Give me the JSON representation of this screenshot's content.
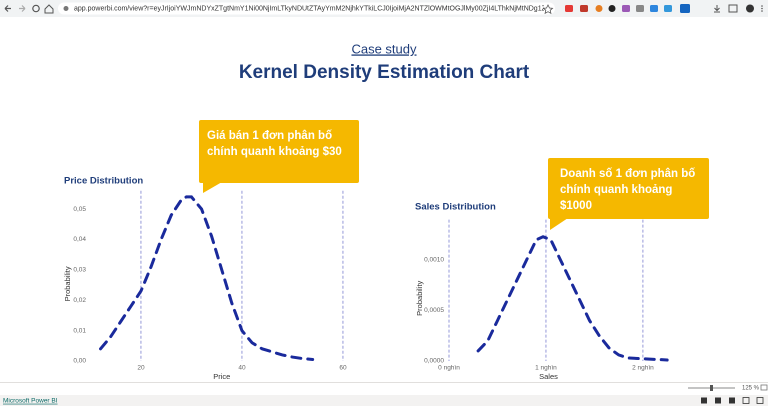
{
  "browser": {
    "url": "app.powerbi.com/view?r=eyJrIjoiYWJmNDYxZTgtNmY1Ni00NjImLTkyNDUtZTAyYmM2NjhkYTkiLCJ0IjoiMjA2NTZlOWMtOGJlMy00ZjI4LThkNjMtNDg1ZDY1ZmU3MWIzIiwiYyI6MTB9%3D%3D"
  },
  "header": {
    "subtitle": "Case study",
    "title": "Kernel Density Estimation Chart"
  },
  "callouts": [
    {
      "text": "Giá bán 1 đơn phân bố chính quanh khoảng $30"
    },
    {
      "text": "Doanh số 1 đơn phân bố chính quanh khoảng $1000"
    }
  ],
  "chart_data": [
    {
      "type": "line",
      "title": "Price Distribution",
      "x_label": "Price",
      "y_label": "Probability",
      "x": [
        12,
        14,
        16,
        18,
        20,
        22,
        24,
        26,
        28,
        29,
        30,
        32,
        34,
        36,
        38,
        40,
        42,
        44,
        46,
        48,
        50,
        52,
        54
      ],
      "values": [
        0.004,
        0.008,
        0.013,
        0.018,
        0.023,
        0.031,
        0.04,
        0.048,
        0.053,
        0.054,
        0.054,
        0.05,
        0.041,
        0.03,
        0.019,
        0.01,
        0.006,
        0.004,
        0.003,
        0.002,
        0.0013,
        0.0008,
        0.0005
      ],
      "color": "#1a2a9c",
      "line_style": "dashed",
      "xlim": [
        11,
        61
      ],
      "ylim": [
        0,
        0.056
      ],
      "xticks": [
        20,
        40,
        60
      ],
      "yticks": [
        {
          "value": 0,
          "label": "0,00"
        },
        {
          "value": 0.01,
          "label": "0,01"
        },
        {
          "value": 0.02,
          "label": "0,02"
        },
        {
          "value": 0.03,
          "label": "0,03"
        },
        {
          "value": 0.04,
          "label": "0,04"
        },
        {
          "value": 0.05,
          "label": "0,05"
        }
      ],
      "grid": true
    },
    {
      "type": "line",
      "title": "Sales Distribution",
      "x_label": "Sales",
      "y_label": "Probability",
      "x": [
        300,
        400,
        500,
        600,
        700,
        800,
        900,
        970,
        1050,
        1150,
        1250,
        1350,
        1450,
        1550,
        1650,
        1750,
        1850,
        2250
      ],
      "values": [
        0.0001,
        0.0002,
        0.0004,
        0.0006,
        0.0008,
        0.001,
        0.0012,
        0.00123,
        0.0012,
        0.001,
        0.0008,
        0.0006,
        0.0004,
        0.00025,
        0.00013,
        6e-05,
        3e-05,
        1e-05
      ],
      "color": "#1a2a9c",
      "line_style": "dashed",
      "xlim": [
        0,
        2300
      ],
      "ylim": [
        0,
        0.0014
      ],
      "xticks": [
        {
          "value": 0,
          "label": "0 nghìn"
        },
        {
          "value": 1000,
          "label": "1 nghìn"
        },
        {
          "value": 2000,
          "label": "2 nghìn"
        }
      ],
      "yticks": [
        {
          "value": 0,
          "label": "0,0000"
        },
        {
          "value": 0.0005,
          "label": "0,0005"
        },
        {
          "value": 0.001,
          "label": "0,0010"
        }
      ],
      "grid": true
    }
  ],
  "footer": {
    "zoom": "125 %",
    "brand": "Microsoft Power BI"
  }
}
